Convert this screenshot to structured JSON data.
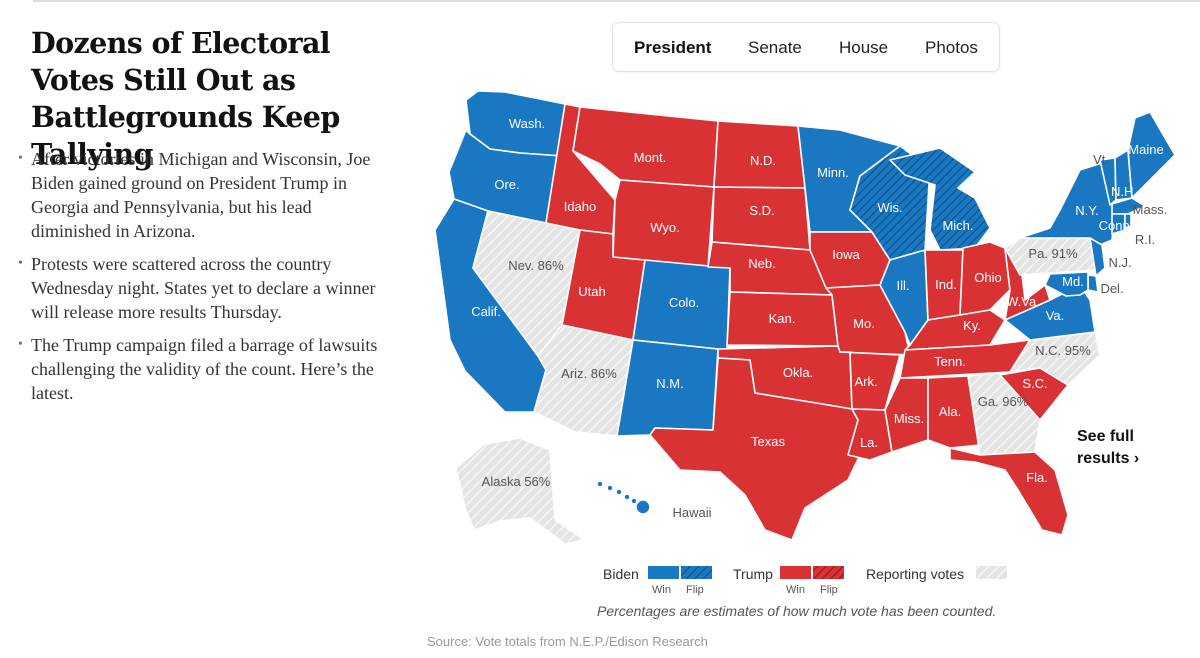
{
  "headline": "Dozens of Electoral Votes Still Out as Battlegrounds Keep Tallying",
  "bullets": [
    "After victories in Michigan and Wisconsin, Joe Biden gained ground on President Trump in Georgia and Pennsylvania, but his lead diminished in Arizona.",
    "Protests were scattered across the country Wednesday night. States yet to declare a winner will release more results Thursday.",
    "The Trump campaign filed a barrage of lawsuits challenging the validity of the count. Here’s the latest."
  ],
  "tabs": [
    "President",
    "Senate",
    "House",
    "Photos"
  ],
  "active_tab": "President",
  "colors": {
    "biden": "#1a78c2",
    "trump": "#d93235",
    "reporting": "#dfdfdf",
    "border": "#ffffff"
  },
  "states": {
    "Wash.": "biden",
    "Ore.": "biden",
    "Calif.": "biden",
    "Nev. 86%": "reporting",
    "Idaho": "trump",
    "Mont.": "trump",
    "Wyo.": "trump",
    "Utah": "trump",
    "Colo.": "biden",
    "Ariz. 86%": "reporting",
    "N.M.": "biden",
    "N.D.": "trump",
    "S.D.": "trump",
    "Neb.": "trump",
    "Kan.": "trump",
    "Okla.": "trump",
    "Texas": "trump",
    "Minn.": "biden",
    "Iowa": "trump",
    "Mo.": "trump",
    "Ark.": "trump",
    "La.": "trump",
    "Wis.": "biden-flip",
    "Ill.": "biden",
    "Mich.": "biden-flip",
    "Ind.": "trump",
    "Ohio": "trump",
    "Ky.": "trump",
    "Tenn.": "trump",
    "Miss.": "trump",
    "Ala.": "trump",
    "Ga. 96%": "reporting",
    "Fla.": "trump",
    "S.C.": "trump",
    "N.C. 95%": "reporting",
    "Va.": "biden",
    "W.Va.": "trump",
    "Pa. 91%": "reporting",
    "N.Y.": "biden",
    "Vt.": "biden",
    "N.H.": "biden",
    "Maine": "biden",
    "Mass.": "biden",
    "R.I.": "biden",
    "Conn.": "biden",
    "N.J.": "biden",
    "Del.": "biden",
    "Md.": "biden",
    "Alaska 56%": "reporting",
    "Hawaii": "biden"
  },
  "see_full": {
    "line1": "See full",
    "line2": "results ›"
  },
  "legend": {
    "biden": "Biden",
    "trump": "Trump",
    "reporting": "Reporting votes",
    "win": "Win",
    "flip": "Flip"
  },
  "note": "Percentages are estimates of how much vote has been counted.",
  "source": "Source: Vote totals from N.E.P./Edison Research"
}
